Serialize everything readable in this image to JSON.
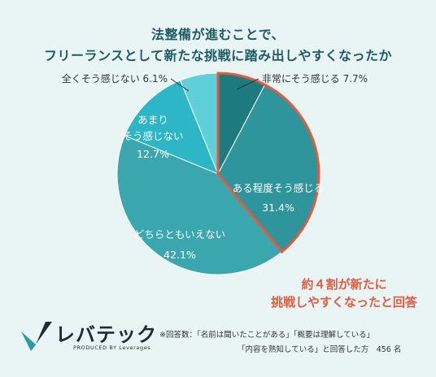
{
  "title": {
    "line1": "法整備が進むことで、",
    "line2": "フリーランスとして新たな挑戦に踏み出しやすくなったか"
  },
  "chart_data": {
    "type": "pie",
    "slices": [
      {
        "label": "非常にそう感じる",
        "value": 7.7,
        "value_text": "7.7%",
        "color": "#1d7b80"
      },
      {
        "label": "ある程度そう感じる",
        "value": 31.4,
        "value_text": "31.4%",
        "color": "#2e959c"
      },
      {
        "label": "どちらともいえない",
        "value": 42.1,
        "value_text": "42.1%",
        "color": "#3aa7af"
      },
      {
        "label": "あまりそう感じない",
        "value": 12.7,
        "value_text": "12.7%",
        "color": "#2db6c6"
      },
      {
        "label": "全くそう感じない",
        "value": 6.1,
        "value_text": "6.1%",
        "color": "#5fcfd9"
      }
    ],
    "highlight_color": "#e45a3f"
  },
  "labels": {
    "very_much": "非常にそう感じる 7.7%",
    "somewhat_l1": "ある程度そう感じる",
    "neutral_l1": "どちらともいえない",
    "not_much_l1": "あまり",
    "not_much_l2": "そう感じない",
    "not_at_all": "全くそう感じない 6.1%"
  },
  "callout": {
    "line1": "約４割が新たに",
    "line2": "挑戦しやすくなったと回答"
  },
  "logo": {
    "name": "レバテック",
    "sub": "PRODUCED BY Leverages"
  },
  "note": {
    "line1": "※回答数：「名前は聞いたことがある」「概要は理解している」",
    "line2": "「内容を熟知している」と回答した方　456 名"
  }
}
